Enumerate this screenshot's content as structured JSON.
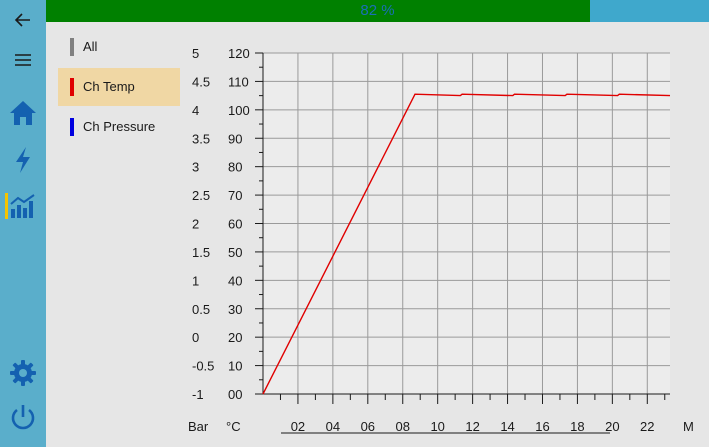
{
  "progress": {
    "value": 0.82,
    "label": "82 %"
  },
  "colors": {
    "progress_fill": "#008000",
    "progress_track": "#3fa8cc",
    "sidebar": "#5aaecb",
    "selected": "#f0d7a4"
  },
  "sidebar": {
    "items": [
      {
        "icon": "back-arrow-icon"
      },
      {
        "icon": "hamburger-menu-icon"
      },
      {
        "icon": "home-icon"
      },
      {
        "icon": "lightning-icon"
      },
      {
        "icon": "chart-icon"
      },
      {
        "icon": "gear-icon"
      },
      {
        "icon": "power-icon"
      }
    ]
  },
  "legend": [
    {
      "label": "All",
      "color": "#808080",
      "selected": false
    },
    {
      "label": "Ch Temp",
      "color": "#e00000",
      "selected": true
    },
    {
      "label": "Ch Pressure",
      "color": "#0000e0",
      "selected": false
    }
  ],
  "chart_data": {
    "type": "line",
    "xlabel": "M",
    "y_units": {
      "pressure": "Bar",
      "temp": "°C"
    },
    "x_ticks": [
      "02",
      "04",
      "06",
      "08",
      "10",
      "12",
      "14",
      "16",
      "18",
      "20",
      "22"
    ],
    "xlim": [
      0,
      23.3
    ],
    "y_pressure_ticks": [
      "5",
      "4.5",
      "4",
      "3.5",
      "3",
      "2.5",
      "2",
      "1.5",
      "1",
      "0.5",
      "0",
      "-0.5",
      "-1"
    ],
    "y_temp_ticks": [
      "120",
      "110",
      "100",
      "90",
      "80",
      "70",
      "60",
      "50",
      "40",
      "30",
      "20",
      "10",
      "00"
    ],
    "ylim_temp": [
      0,
      120
    ],
    "series": [
      {
        "name": "Ch Temp",
        "color": "#e00000",
        "points": [
          [
            0,
            0
          ],
          [
            8.7,
            105.5
          ],
          [
            11.3,
            105
          ],
          [
            11.4,
            105.5
          ],
          [
            14.3,
            105
          ],
          [
            14.4,
            105.5
          ],
          [
            17.3,
            105
          ],
          [
            17.4,
            105.5
          ],
          [
            20.3,
            105
          ],
          [
            20.4,
            105.5
          ],
          [
            23.3,
            105
          ]
        ]
      }
    ]
  }
}
